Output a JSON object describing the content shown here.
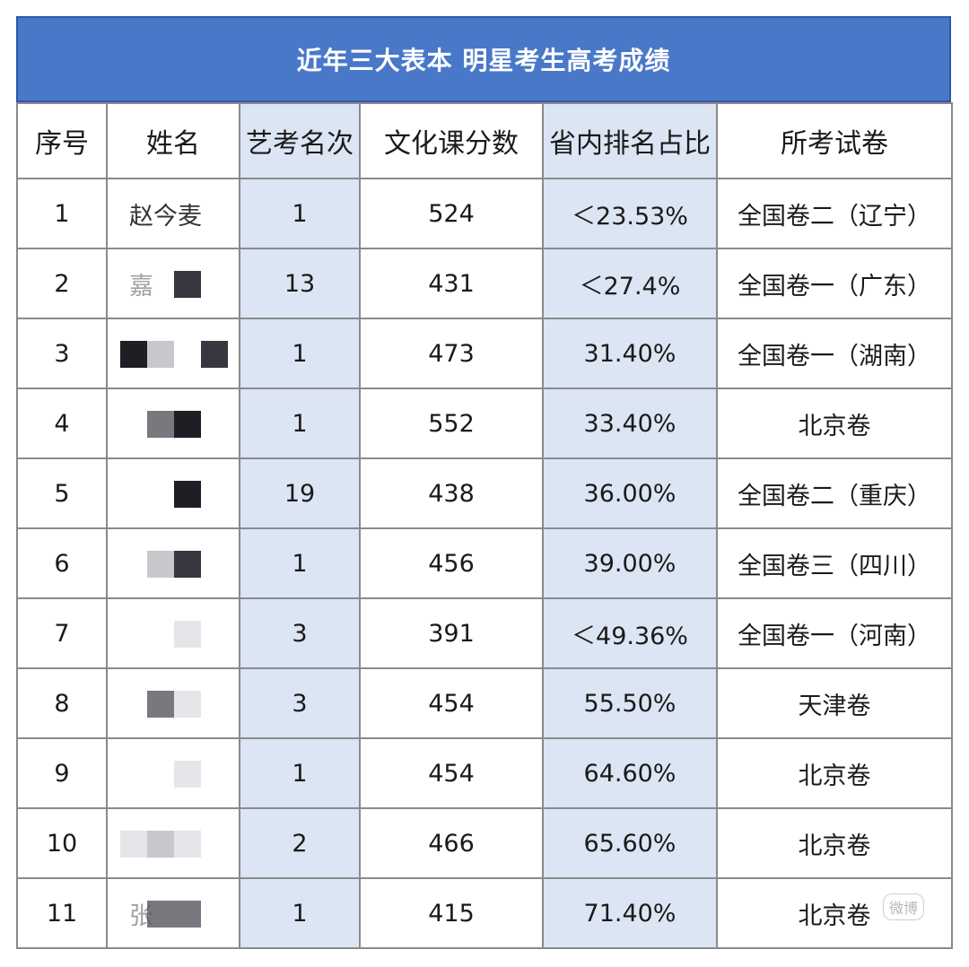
{
  "title": "近年三大表本 明星考生高考成绩",
  "headers": [
    "序号",
    "姓名",
    "艺考名次",
    "文化课分数",
    "省内排名占比",
    "所考试卷"
  ],
  "rows": [
    {
      "no": "1",
      "name": "赵今麦",
      "rank": "1",
      "score": "524",
      "pct": "＜23.53%",
      "paper": "全国卷二（辽宁）"
    },
    {
      "no": "2",
      "name": "嘉",
      "rank": "13",
      "score": "431",
      "pct": "＜27.4%",
      "paper": "全国卷一（广东）"
    },
    {
      "no": "3",
      "name": "",
      "rank": "1",
      "score": "473",
      "pct": "31.40%",
      "paper": "全国卷一（湖南）"
    },
    {
      "no": "4",
      "name": "",
      "rank": "1",
      "score": "552",
      "pct": "33.40%",
      "paper": "北京卷"
    },
    {
      "no": "5",
      "name": "",
      "rank": "19",
      "score": "438",
      "pct": "36.00%",
      "paper": "全国卷二（重庆）"
    },
    {
      "no": "6",
      "name": "",
      "rank": "1",
      "score": "456",
      "pct": "39.00%",
      "paper": "全国卷三（四川）"
    },
    {
      "no": "7",
      "name": "",
      "rank": "3",
      "score": "391",
      "pct": "＜49.36%",
      "paper": "全国卷一（河南）"
    },
    {
      "no": "8",
      "name": "",
      "rank": "3",
      "score": "454",
      "pct": "55.50%",
      "paper": "天津卷"
    },
    {
      "no": "9",
      "name": "",
      "rank": "1",
      "score": "454",
      "pct": "64.60%",
      "paper": "北京卷"
    },
    {
      "no": "10",
      "name": "",
      "rank": "2",
      "score": "466",
      "pct": "65.60%",
      "paper": "北京卷"
    },
    {
      "no": "11",
      "name": "张",
      "rank": "1",
      "score": "415",
      "pct": "71.40%",
      "paper": "北京卷"
    }
  ],
  "watermark": "微博"
}
